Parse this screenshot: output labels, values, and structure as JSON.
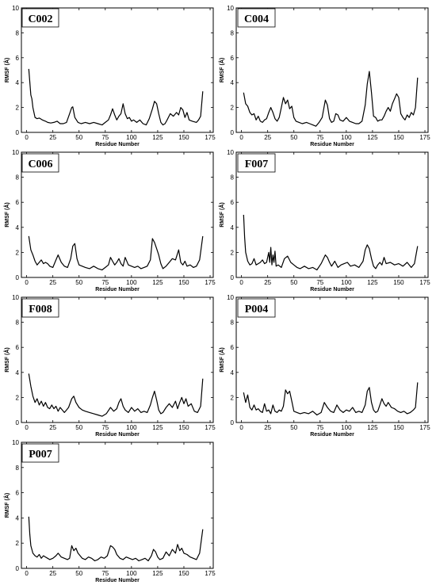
{
  "chart_data": [
    {
      "type": "line",
      "title": "C002",
      "xlabel": "Residue Number",
      "ylabel": "RMSF (Å)",
      "xlim": [
        -5,
        178
      ],
      "ylim": [
        0,
        10
      ],
      "xticks": [
        0,
        25,
        50,
        75,
        100,
        125,
        150,
        175
      ],
      "yticks": [
        0,
        2,
        4,
        6,
        8,
        10
      ],
      "series": [
        {
          "x": [
            2,
            4,
            5,
            6,
            8,
            10,
            12,
            15,
            18,
            20,
            23,
            26,
            29,
            32,
            35,
            38,
            41,
            43,
            44,
            46,
            49,
            52,
            56,
            60,
            64,
            68,
            72,
            75,
            78,
            80,
            82,
            84,
            86,
            88,
            90,
            92,
            94,
            96,
            98,
            100,
            102,
            105,
            108,
            111,
            114,
            117,
            120,
            122,
            124,
            126,
            128,
            130,
            132,
            134,
            137,
            140,
            143,
            145,
            147,
            149,
            151,
            153,
            155,
            158,
            162,
            164,
            166,
            168
          ],
          "y": [
            5.1,
            3.0,
            2.7,
            2.0,
            1.2,
            1.1,
            1.15,
            1.0,
            0.9,
            0.8,
            0.75,
            0.8,
            0.9,
            0.7,
            0.7,
            0.8,
            1.5,
            2.0,
            2.05,
            1.2,
            0.8,
            0.7,
            0.8,
            0.7,
            0.8,
            0.7,
            0.6,
            0.8,
            1.0,
            1.4,
            1.9,
            1.4,
            1.0,
            1.3,
            1.5,
            2.3,
            1.5,
            1.1,
            1.2,
            0.9,
            1.0,
            0.8,
            1.0,
            0.7,
            0.6,
            1.1,
            1.9,
            2.5,
            2.3,
            1.5,
            0.8,
            0.6,
            0.7,
            1.0,
            1.5,
            1.3,
            1.6,
            1.4,
            2.0,
            1.8,
            1.2,
            1.6,
            1.0,
            0.9,
            0.8,
            1.0,
            1.3,
            3.3
          ]
        }
      ]
    },
    {
      "type": "line",
      "title": "C004",
      "xlabel": "Residue Number",
      "ylabel": "RMSF (Å)",
      "xlim": [
        -5,
        178
      ],
      "ylim": [
        0,
        10
      ],
      "xticks": [
        0,
        25,
        50,
        75,
        100,
        125,
        150,
        175
      ],
      "yticks": [
        0,
        2,
        4,
        6,
        8,
        10
      ],
      "series": [
        {
          "x": [
            2,
            4,
            6,
            8,
            10,
            12,
            14,
            16,
            18,
            20,
            22,
            24,
            26,
            28,
            30,
            32,
            34,
            36,
            38,
            40,
            42,
            44,
            46,
            48,
            50,
            52,
            55,
            58,
            62,
            65,
            68,
            71,
            74,
            77,
            80,
            82,
            84,
            86,
            88,
            90,
            92,
            94,
            97,
            100,
            103,
            106,
            109,
            112,
            115,
            118,
            120,
            122,
            124,
            126,
            128,
            130,
            132,
            134,
            136,
            138,
            140,
            142,
            144,
            146,
            148,
            150,
            152,
            154,
            156,
            158,
            160,
            162,
            164,
            166,
            168
          ],
          "y": [
            3.2,
            2.3,
            2.1,
            1.6,
            1.4,
            1.5,
            1.0,
            1.3,
            0.9,
            0.8,
            1.0,
            1.1,
            1.6,
            2.0,
            1.6,
            1.1,
            0.9,
            1.2,
            2.0,
            2.8,
            2.3,
            2.6,
            1.9,
            2.1,
            1.2,
            0.9,
            0.8,
            0.7,
            0.8,
            0.7,
            0.6,
            0.5,
            0.8,
            1.2,
            2.6,
            2.2,
            1.1,
            0.8,
            0.9,
            1.5,
            1.4,
            1.0,
            0.9,
            1.2,
            0.9,
            0.8,
            0.7,
            0.7,
            0.9,
            2.2,
            3.9,
            4.9,
            3.2,
            1.3,
            1.2,
            0.9,
            1.0,
            1.0,
            1.3,
            1.7,
            2.0,
            1.7,
            2.3,
            2.7,
            3.1,
            2.8,
            1.5,
            1.2,
            1.0,
            1.4,
            1.2,
            1.6,
            1.4,
            2.0,
            4.4
          ]
        }
      ]
    },
    {
      "type": "line",
      "title": "C006",
      "xlabel": "Residue Number",
      "ylabel": "RMSF (Å)",
      "xlim": [
        -5,
        178
      ],
      "ylim": [
        0,
        10
      ],
      "xticks": [
        0,
        25,
        50,
        75,
        100,
        125,
        150,
        175
      ],
      "yticks": [
        0,
        2,
        4,
        6,
        8,
        10
      ],
      "series": [
        {
          "x": [
            2,
            4,
            6,
            8,
            10,
            12,
            14,
            16,
            18,
            20,
            22,
            25,
            28,
            30,
            33,
            36,
            39,
            42,
            44,
            46,
            48,
            50,
            53,
            56,
            60,
            64,
            68,
            72,
            75,
            78,
            80,
            82,
            84,
            86,
            88,
            90,
            92,
            94,
            97,
            100,
            103,
            106,
            109,
            112,
            115,
            118,
            120,
            122,
            124,
            126,
            128,
            130,
            133,
            136,
            139,
            142,
            145,
            147,
            149,
            151,
            153,
            156,
            159,
            162,
            165,
            168
          ],
          "y": [
            3.3,
            2.2,
            1.8,
            1.3,
            1.0,
            1.2,
            1.4,
            1.1,
            1.2,
            1.1,
            0.9,
            0.8,
            1.4,
            1.8,
            1.2,
            0.9,
            0.8,
            1.5,
            2.5,
            2.7,
            1.5,
            1.0,
            0.9,
            0.8,
            0.7,
            0.9,
            0.7,
            0.6,
            0.8,
            1.0,
            1.6,
            1.3,
            1.0,
            1.2,
            1.5,
            1.1,
            0.9,
            1.6,
            1.0,
            0.9,
            0.8,
            0.9,
            0.7,
            0.8,
            0.9,
            1.4,
            3.1,
            2.8,
            2.3,
            1.8,
            1.1,
            0.7,
            0.9,
            1.2,
            1.5,
            1.4,
            2.2,
            1.2,
            1.0,
            1.3,
            0.9,
            1.0,
            0.8,
            0.9,
            1.4,
            3.3
          ]
        }
      ]
    },
    {
      "type": "line",
      "title": "F007",
      "xlabel": "Residue Number",
      "ylabel": "RMSF (Å)",
      "xlim": [
        -5,
        178
      ],
      "ylim": [
        0,
        10
      ],
      "xticks": [
        0,
        25,
        50,
        75,
        100,
        125,
        150,
        175
      ],
      "yticks": [
        0,
        2,
        4,
        6,
        8,
        10
      ],
      "series": [
        {
          "x": [
            2,
            3,
            4,
            6,
            8,
            10,
            12,
            14,
            16,
            18,
            20,
            22,
            24,
            26,
            27,
            28,
            29,
            30,
            31,
            32,
            33,
            35,
            38,
            41,
            44,
            47,
            50,
            53,
            56,
            60,
            64,
            68,
            72,
            76,
            80,
            82,
            84,
            86,
            89,
            92,
            95,
            98,
            101,
            104,
            108,
            112,
            116,
            118,
            120,
            122,
            124,
            126,
            128,
            130,
            132,
            134,
            136,
            138,
            142,
            146,
            150,
            154,
            158,
            162,
            165,
            168
          ],
          "y": [
            5.0,
            3.2,
            2.0,
            1.3,
            1.0,
            1.1,
            1.5,
            1.0,
            1.1,
            1.2,
            1.4,
            1.1,
            1.2,
            2.0,
            1.2,
            2.4,
            1.0,
            1.8,
            1.2,
            2.1,
            0.9,
            1.0,
            0.8,
            1.5,
            1.7,
            1.2,
            1.0,
            0.8,
            0.7,
            0.9,
            0.7,
            0.8,
            0.6,
            1.1,
            1.8,
            1.6,
            1.2,
            0.9,
            1.3,
            0.8,
            1.0,
            1.1,
            1.2,
            0.9,
            1.0,
            0.8,
            1.3,
            2.2,
            2.6,
            2.3,
            1.5,
            0.9,
            0.7,
            1.0,
            1.2,
            1.0,
            1.6,
            1.1,
            1.2,
            1.0,
            1.1,
            0.9,
            1.2,
            0.8,
            1.1,
            2.5
          ]
        }
      ]
    },
    {
      "type": "line",
      "title": "F008",
      "xlabel": "Residue Number",
      "ylabel": "RMSF (Å)",
      "xlim": [
        -5,
        178
      ],
      "ylim": [
        0,
        10
      ],
      "xticks": [
        0,
        25,
        50,
        75,
        100,
        125,
        150,
        175
      ],
      "yticks": [
        0,
        2,
        4,
        6,
        8,
        10
      ],
      "series": [
        {
          "x": [
            2,
            4,
            6,
            8,
            10,
            12,
            14,
            16,
            18,
            20,
            22,
            24,
            26,
            28,
            30,
            32,
            34,
            36,
            38,
            40,
            43,
            45,
            47,
            50,
            53,
            56,
            60,
            64,
            68,
            72,
            76,
            80,
            83,
            86,
            88,
            90,
            92,
            94,
            97,
            100,
            103,
            106,
            109,
            112,
            115,
            118,
            120,
            122,
            124,
            126,
            128,
            130,
            133,
            136,
            139,
            142,
            144,
            146,
            148,
            150,
            152,
            154,
            157,
            160,
            163,
            166,
            168
          ],
          "y": [
            3.9,
            2.9,
            2.1,
            1.6,
            1.9,
            1.4,
            1.7,
            1.3,
            1.6,
            1.2,
            1.1,
            1.4,
            1.1,
            1.3,
            0.9,
            1.2,
            1.0,
            0.8,
            1.0,
            1.2,
            1.9,
            2.1,
            1.6,
            1.2,
            1.0,
            0.9,
            0.8,
            0.7,
            0.6,
            0.5,
            0.7,
            1.2,
            0.9,
            1.1,
            1.6,
            1.9,
            1.3,
            1.0,
            0.8,
            1.2,
            0.9,
            1.1,
            0.8,
            0.9,
            0.8,
            1.4,
            2.0,
            2.5,
            1.8,
            1.0,
            0.7,
            0.8,
            1.2,
            1.5,
            1.2,
            1.7,
            1.1,
            1.6,
            2.0,
            1.5,
            1.9,
            1.3,
            1.5,
            0.9,
            0.8,
            1.3,
            3.5
          ]
        }
      ]
    },
    {
      "type": "line",
      "title": "P004",
      "xlabel": "Residue Number",
      "ylabel": "RMSF (Å)",
      "xlim": [
        -5,
        178
      ],
      "ylim": [
        0,
        10
      ],
      "xticks": [
        0,
        25,
        50,
        75,
        100,
        125,
        150,
        175
      ],
      "yticks": [
        0,
        2,
        4,
        6,
        8,
        10
      ],
      "series": [
        {
          "x": [
            2,
            4,
            6,
            8,
            10,
            12,
            14,
            16,
            18,
            20,
            22,
            24,
            26,
            28,
            30,
            32,
            34,
            36,
            38,
            40,
            42,
            44,
            46,
            48,
            50,
            53,
            56,
            60,
            64,
            68,
            72,
            76,
            79,
            82,
            85,
            88,
            91,
            94,
            97,
            100,
            103,
            106,
            109,
            112,
            115,
            118,
            120,
            122,
            124,
            126,
            128,
            130,
            132,
            134,
            136,
            138,
            140,
            143,
            146,
            149,
            152,
            155,
            158,
            161,
            164,
            166,
            168
          ],
          "y": [
            2.4,
            1.6,
            2.2,
            1.2,
            1.0,
            1.4,
            1.0,
            1.1,
            0.9,
            0.8,
            1.5,
            0.9,
            1.0,
            0.7,
            1.4,
            0.9,
            0.8,
            1.0,
            0.9,
            1.3,
            2.6,
            2.3,
            2.5,
            1.7,
            0.9,
            0.8,
            0.7,
            0.8,
            0.7,
            0.9,
            0.6,
            0.8,
            1.6,
            1.2,
            0.9,
            0.8,
            1.4,
            1.0,
            0.8,
            1.0,
            0.9,
            1.2,
            0.8,
            0.9,
            0.8,
            1.4,
            2.5,
            2.8,
            1.6,
            1.0,
            0.8,
            0.9,
            1.4,
            1.9,
            1.5,
            1.3,
            1.6,
            1.2,
            1.1,
            0.9,
            0.8,
            0.9,
            0.7,
            0.8,
            1.0,
            1.2,
            3.2
          ]
        }
      ]
    },
    {
      "type": "line",
      "title": "P007",
      "xlabel": "Residue Number",
      "ylabel": "RMSF (Å)",
      "xlim": [
        -5,
        178
      ],
      "ylim": [
        0,
        10
      ],
      "xticks": [
        0,
        25,
        50,
        75,
        100,
        125,
        150,
        175
      ],
      "yticks": [
        0,
        2,
        4,
        6,
        8,
        10
      ],
      "series": [
        {
          "x": [
            2,
            3,
            4,
            6,
            8,
            10,
            12,
            14,
            16,
            18,
            20,
            22,
            25,
            28,
            30,
            33,
            36,
            39,
            41,
            43,
            45,
            47,
            49,
            51,
            53,
            56,
            59,
            62,
            65,
            68,
            71,
            74,
            77,
            80,
            82,
            84,
            86,
            89,
            92,
            95,
            98,
            101,
            104,
            107,
            110,
            113,
            116,
            119,
            121,
            123,
            125,
            127,
            130,
            133,
            136,
            139,
            142,
            144,
            146,
            148,
            150,
            153,
            156,
            159,
            162,
            165,
            168
          ],
          "y": [
            4.1,
            2.7,
            1.8,
            1.2,
            1.0,
            0.9,
            1.1,
            0.8,
            1.0,
            0.9,
            0.8,
            0.7,
            0.8,
            1.0,
            1.2,
            0.9,
            0.8,
            0.7,
            0.8,
            1.8,
            1.4,
            1.6,
            1.2,
            1.0,
            0.8,
            0.7,
            0.9,
            0.8,
            0.6,
            0.7,
            0.9,
            0.8,
            1.0,
            1.8,
            1.7,
            1.5,
            1.1,
            0.8,
            0.7,
            0.9,
            0.8,
            0.7,
            0.8,
            0.6,
            0.7,
            0.8,
            0.6,
            1.0,
            1.5,
            1.3,
            0.9,
            0.7,
            0.8,
            1.3,
            1.0,
            1.5,
            1.2,
            1.9,
            1.4,
            1.6,
            1.2,
            1.1,
            0.9,
            0.8,
            0.7,
            1.2,
            3.1
          ]
        }
      ]
    }
  ]
}
